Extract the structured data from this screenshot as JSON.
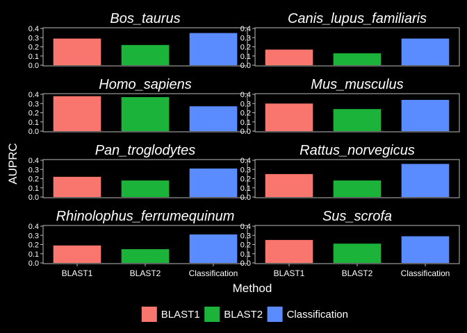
{
  "chart_data": {
    "type": "bar",
    "xlabel": "Method",
    "ylabel": "AUPRC",
    "ylim": [
      0,
      0.4
    ],
    "yticks": [
      "0.0",
      "0.1",
      "0.2",
      "0.3",
      "0.4"
    ],
    "categories": [
      "BLAST1",
      "BLAST2",
      "Classification"
    ],
    "colors": [
      "#F8766D",
      "#1CB33A",
      "#5B8CFF"
    ],
    "legend": {
      "placement": "bottom",
      "entries": [
        "BLAST1",
        "BLAST2",
        "Classification"
      ]
    },
    "grid": false,
    "facets": [
      {
        "title": "Bos_taurus",
        "values": [
          0.29,
          0.22,
          0.35
        ]
      },
      {
        "title": "Canis_lupus_familiaris",
        "values": [
          0.17,
          0.13,
          0.29
        ]
      },
      {
        "title": "Homo_sapiens",
        "values": [
          0.38,
          0.37,
          0.27
        ]
      },
      {
        "title": "Mus_musculus",
        "values": [
          0.3,
          0.24,
          0.34
        ]
      },
      {
        "title": "Pan_troglodytes",
        "values": [
          0.22,
          0.18,
          0.31
        ]
      },
      {
        "title": "Rattus_norvegicus",
        "values": [
          0.25,
          0.18,
          0.36
        ]
      },
      {
        "title": "Rhinolophus_ferrumequinum",
        "values": [
          0.19,
          0.15,
          0.31
        ]
      },
      {
        "title": "Sus_scrofa",
        "values": [
          0.25,
          0.21,
          0.29
        ]
      }
    ]
  }
}
